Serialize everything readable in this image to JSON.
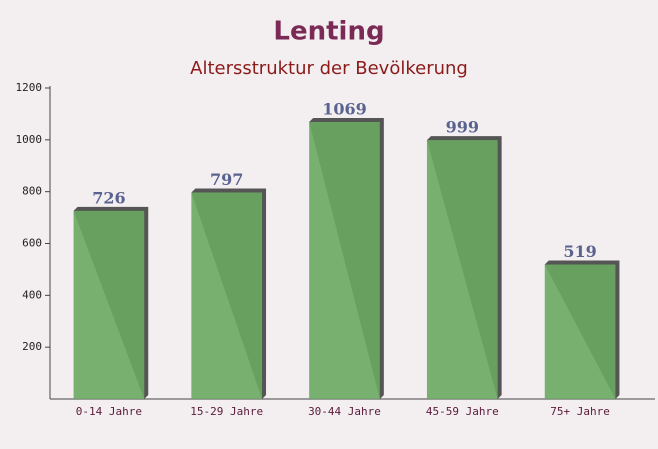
{
  "chart_data": {
    "type": "bar",
    "title": "Lenting",
    "subtitle": "Altersstruktur der Bevölkerung",
    "categories": [
      "0-14 Jahre",
      "15-29 Jahre",
      "30-44 Jahre",
      "45-59 Jahre",
      "75+ Jahre"
    ],
    "values": [
      726,
      797,
      1069,
      999,
      519
    ],
    "color": "#6aa862",
    "ylim": [
      0,
      1200
    ],
    "yticks": [
      200,
      400,
      600,
      800,
      1000,
      1200
    ]
  }
}
